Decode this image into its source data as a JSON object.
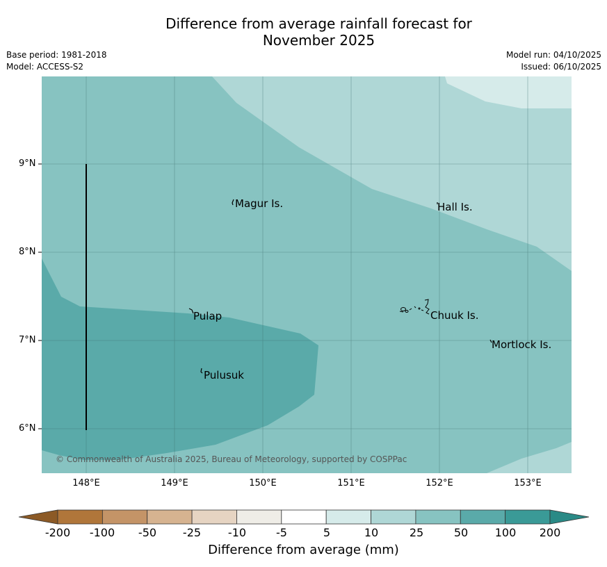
{
  "title_line1": "Difference from average rainfall forecast for",
  "title_line2": "November 2025",
  "meta": {
    "base_period": "Base period: 1981-2018",
    "model": "Model: ACCESS-S2",
    "model_run": "Model run: 04/10/2025",
    "issued": "Issued: 06/10/2025"
  },
  "map": {
    "lat_labels": [
      "9°N",
      "8°N",
      "7°N",
      "6°N"
    ],
    "lon_labels": [
      "148°E",
      "149°E",
      "150°E",
      "151°E",
      "152°E",
      "153°E"
    ],
    "islands": {
      "magur": "Magur Is.",
      "hall": "Hall Is.",
      "pulap": "Pulap",
      "chuuk": "Chuuk Is.",
      "mortlock": "Mortlock Is.",
      "pulusuk": "Pulusuk"
    },
    "copyright": "© Commonwealth of Australia 2025, Bureau of Meteorology, supported by COSPPac"
  },
  "legend": {
    "title": "Difference from average (mm)",
    "ticks": [
      "-200",
      "-100",
      "-50",
      "-25",
      "-10",
      "-5",
      "5",
      "10",
      "25",
      "50",
      "100",
      "200"
    ],
    "colors": [
      "#8c5a26",
      "#b0763a",
      "#c49467",
      "#d6b390",
      "#e6d4c2",
      "#efede7",
      "#ffffff",
      "#d6ebea",
      "#afd7d6",
      "#87c3c1",
      "#5aaaa9",
      "#3a9a97",
      "#2a8a86"
    ]
  }
}
